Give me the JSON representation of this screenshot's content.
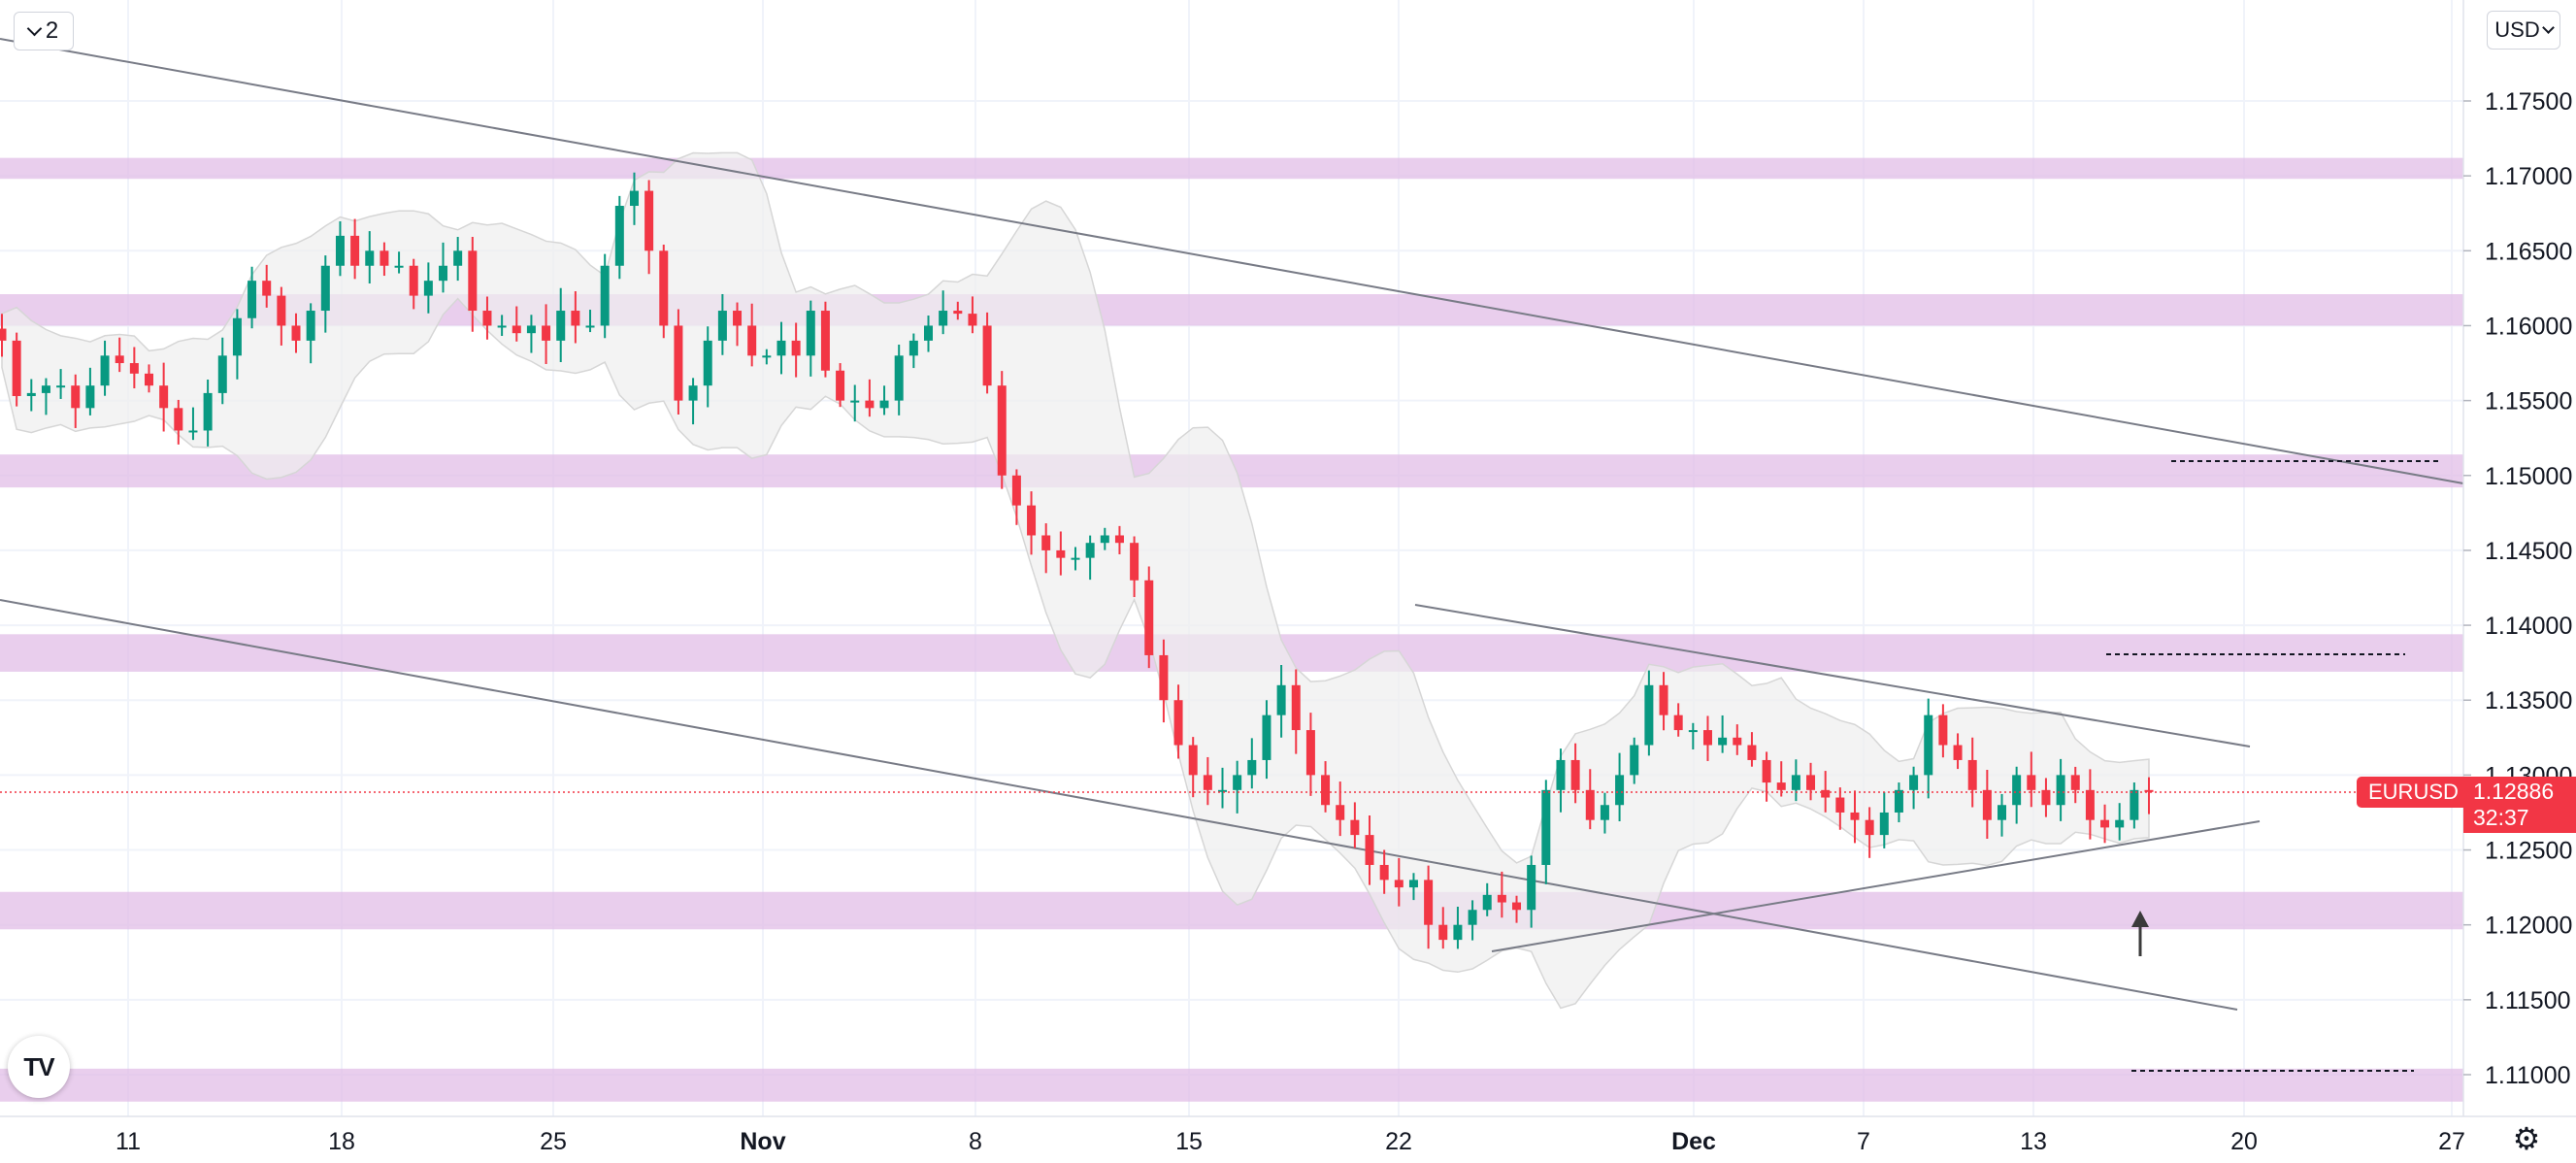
{
  "toolbar": {
    "interval_count": "2",
    "currency": "USD"
  },
  "symbol_label": {
    "symbol": "EURUSD",
    "last_price": "1.12886",
    "countdown": "32:37"
  },
  "logo_text": "TV",
  "colors": {
    "bullish": "#089981",
    "bearish": "#f23645",
    "zone": "#e1bee7",
    "band_fill": "#eeeeee",
    "trendline": "#787b86",
    "price_line": "#f23645"
  },
  "chart_data": {
    "type": "candlestick",
    "symbol": "EURUSD",
    "price_axis": {
      "min": 1.1055,
      "max": 1.1785,
      "ticks": [
        "1.17500",
        "1.17000",
        "1.16500",
        "1.16000",
        "1.15500",
        "1.15000",
        "1.14500",
        "1.14000",
        "1.13500",
        "1.13000",
        "1.12500",
        "1.12000",
        "1.11500",
        "1.11000"
      ]
    },
    "date_axis": {
      "labels": [
        {
          "text": "11",
          "month": false
        },
        {
          "text": "18",
          "month": false
        },
        {
          "text": "25",
          "month": false
        },
        {
          "text": "Nov",
          "month": true
        },
        {
          "text": "8",
          "month": false
        },
        {
          "text": "15",
          "month": false
        },
        {
          "text": "22",
          "month": false
        },
        {
          "text": "Dec",
          "month": true
        },
        {
          "text": "7",
          "month": false
        },
        {
          "text": "13",
          "month": false
        },
        {
          "text": "20",
          "month": false
        },
        {
          "text": "27",
          "month": false
        }
      ]
    },
    "current_price": 1.12886,
    "support_resistance_zones": [
      {
        "low": 1.1698,
        "high": 1.1712
      },
      {
        "low": 1.16,
        "high": 1.1621
      },
      {
        "low": 1.1492,
        "high": 1.1514
      },
      {
        "low": 1.1369,
        "high": 1.1394
      },
      {
        "low": 1.1197,
        "high": 1.1222
      },
      {
        "low": 1.1082,
        "high": 1.1104
      }
    ],
    "swing_closes": [
      1.159,
      1.1553,
      1.1555,
      1.156,
      1.156,
      1.1545,
      1.156,
      1.158,
      1.1575,
      1.1568,
      1.156,
      1.1545,
      1.153,
      1.153,
      1.1555,
      1.158,
      1.1605,
      1.163,
      1.162,
      1.16,
      1.159,
      1.161,
      1.164,
      1.166,
      1.164,
      1.165,
      1.164,
      1.164,
      1.162,
      1.163,
      1.164,
      1.165,
      1.161,
      1.16,
      1.16,
      1.1595,
      1.16,
      1.159,
      1.161,
      1.16,
      1.16,
      1.164,
      1.168,
      1.169,
      1.165,
      1.16,
      1.155,
      1.156,
      1.159,
      1.161,
      1.16,
      1.158,
      1.158,
      1.159,
      1.158,
      1.161,
      1.157,
      1.155,
      1.155,
      1.1545,
      1.155,
      1.158,
      1.159,
      1.16,
      1.161,
      1.1608,
      1.16,
      1.156,
      1.15,
      1.148,
      1.146,
      1.145,
      1.1445,
      1.1445,
      1.1455,
      1.146,
      1.1455,
      1.143,
      1.138,
      1.135,
      1.132,
      1.13,
      1.129,
      1.129,
      1.13,
      1.131,
      1.134,
      1.136,
      1.133,
      1.13,
      1.128,
      1.127,
      1.126,
      1.124,
      1.123,
      1.1225,
      1.123,
      1.12,
      1.119,
      1.12,
      1.121,
      1.122,
      1.1215,
      1.121,
      1.124,
      1.129,
      1.131,
      1.129,
      1.127,
      1.128,
      1.13,
      1.132,
      1.136,
      1.134,
      1.133,
      1.133,
      1.132,
      1.1325,
      1.132,
      1.131,
      1.1295,
      1.129,
      1.13,
      1.129,
      1.1285,
      1.1275,
      1.127,
      1.126,
      1.1275,
      1.129,
      1.13,
      1.134,
      1.132,
      1.131,
      1.129,
      1.127,
      1.128,
      1.13,
      1.129,
      1.128,
      1.13,
      1.129,
      1.127,
      1.1265,
      1.127,
      1.129,
      1.1289
    ],
    "candle_window": {
      "first_date": "Oct 6",
      "last_date": "Dec 16",
      "timeframe_hours": 8
    }
  }
}
